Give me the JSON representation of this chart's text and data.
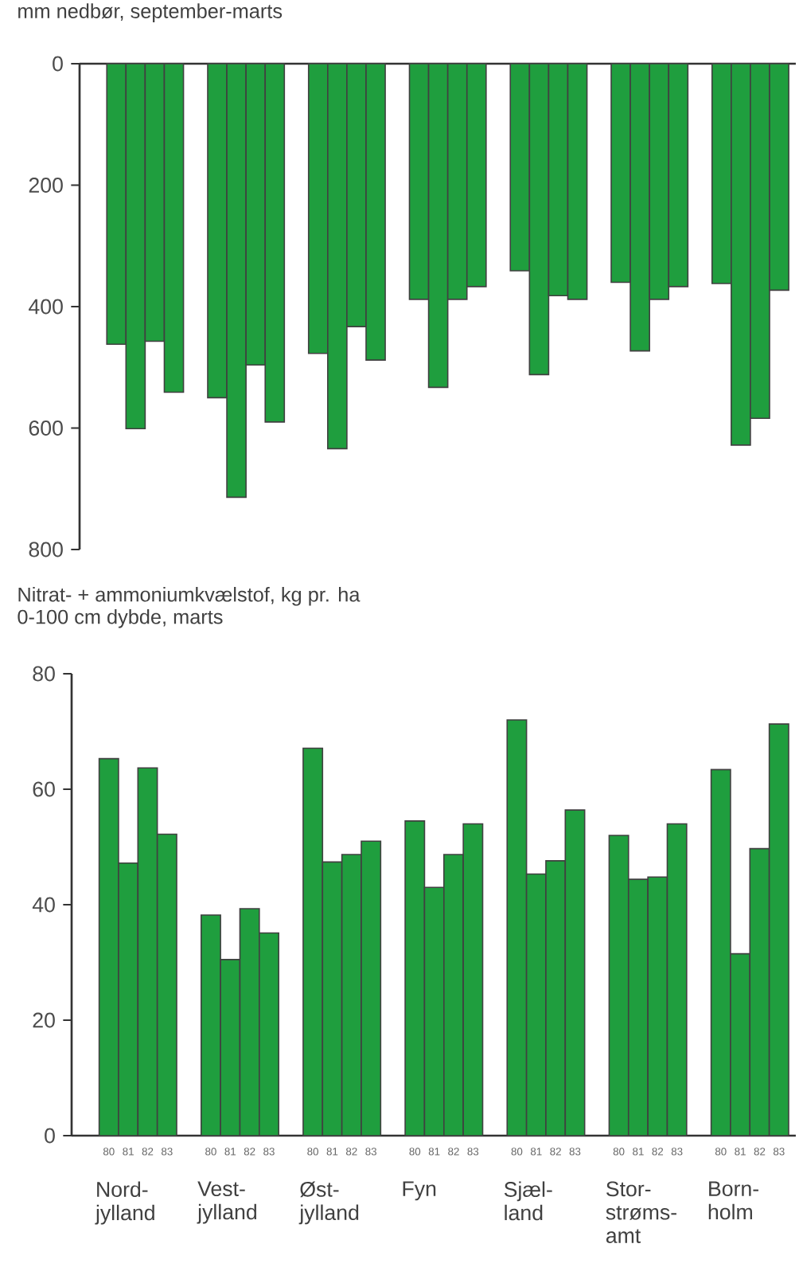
{
  "chart_data": [
    {
      "type": "bar",
      "title": "mm nedbør, september-marts",
      "categories": [
        null,
        null,
        null,
        null,
        null,
        null,
        null
      ],
      "ylim": [
        800,
        0
      ],
      "yticks": [
        0,
        200,
        400,
        600,
        800
      ],
      "series": [
        {
          "color": "#1f9e3e",
          "values": [
            462,
            550,
            477,
            388,
            341,
            360,
            362
          ]
        },
        {
          "color": "#1f9e3e",
          "values": [
            601,
            714,
            634,
            533,
            512,
            473,
            628
          ]
        },
        {
          "color": "#1f9e3e",
          "values": [
            457,
            496,
            433,
            388,
            382,
            388,
            584
          ]
        },
        {
          "color": "#1f9e3e",
          "values": [
            541,
            590,
            488,
            367,
            388,
            367,
            373
          ]
        }
      ]
    },
    {
      "type": "bar",
      "title": "Nitrat- + ammoniumkvælstof, kg pr. ha",
      "subtitle": "0-100 cm dybde, marts",
      "categories": [
        "Nord-jylland",
        "Vest-jylland",
        "Øst-jylland",
        "Fyn",
        "Sjæl-land",
        "Stor-strøms-amt",
        "Born-holm"
      ],
      "ylim": [
        0,
        80
      ],
      "yticks": [
        0,
        20,
        40,
        60,
        80
      ],
      "series": [
        {
          "name": "80",
          "color": "#1f9e3e",
          "values": [
            65.3,
            38.2,
            67.1,
            54.5,
            72.0,
            52.0,
            63.4
          ]
        },
        {
          "name": "81",
          "color": "#1f9e3e",
          "values": [
            47.2,
            30.5,
            47.4,
            43.0,
            45.3,
            44.4,
            31.5
          ]
        },
        {
          "name": "82",
          "color": "#1f9e3e",
          "values": [
            63.7,
            39.3,
            48.7,
            48.7,
            47.6,
            44.8,
            49.7
          ]
        },
        {
          "name": "83",
          "color": "#1f9e3e",
          "values": [
            52.2,
            35.1,
            51.0,
            54.0,
            56.4,
            54.0,
            71.3
          ]
        }
      ]
    }
  ]
}
